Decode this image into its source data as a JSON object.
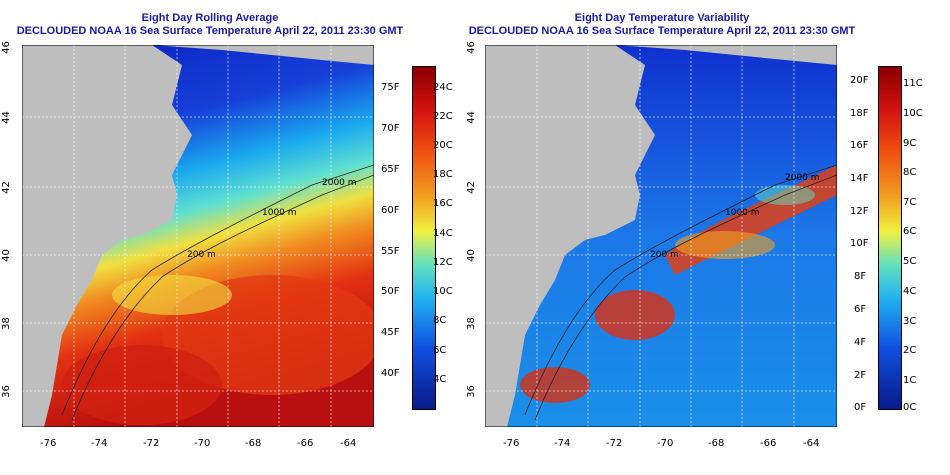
{
  "left_panel": {
    "title": "Eight Day Rolling Average",
    "subtitle": "DECLOUDED NOAA 16 Sea Surface Temperature April 22, 2011 23:30 GMT",
    "lon_ticks": [
      "-76",
      "-74",
      "-72",
      "-70",
      "-68",
      "-66",
      "-64"
    ],
    "lat_ticks": [
      "46",
      "44",
      "42",
      "40",
      "38",
      "36"
    ],
    "contour_labels": [
      "200 m",
      "2000 m",
      "1000 m"
    ],
    "colorbar_f": [
      "75F",
      "70F",
      "65F",
      "60F",
      "55F",
      "50F",
      "45F",
      "40F"
    ],
    "colorbar_c": [
      "24C",
      "22C",
      "20C",
      "18C",
      "16C",
      "14C",
      "12C",
      "10C",
      "8C",
      "6C",
      "4C"
    ]
  },
  "right_panel": {
    "title": "Eight Day Temperature Variability",
    "subtitle": "DECLOUDED NOAA 16 Sea Surface Temperature April 22, 2011 23:30 GMT",
    "lon_ticks": [
      "-76",
      "-74",
      "-72",
      "-70",
      "-68",
      "-66",
      "-64"
    ],
    "lat_ticks": [
      "46",
      "44",
      "42",
      "40",
      "38",
      "36"
    ],
    "contour_labels": [
      "200 m",
      "2000 m",
      "1000 m"
    ],
    "colorbar_f": [
      "20F",
      "18F",
      "16F",
      "14F",
      "12F",
      "10F",
      "8F",
      "6F",
      "4F",
      "2F",
      "0F"
    ],
    "colorbar_c": [
      "11C",
      "10C",
      "9C",
      "8C",
      "7C",
      "6C",
      "5C",
      "4C",
      "3C",
      "2C",
      "1C",
      "0C"
    ]
  },
  "colors": {
    "title": "#1a1aa6",
    "land": "#bebebe",
    "cold": "#0a1fbf",
    "warm": "#e03010"
  }
}
